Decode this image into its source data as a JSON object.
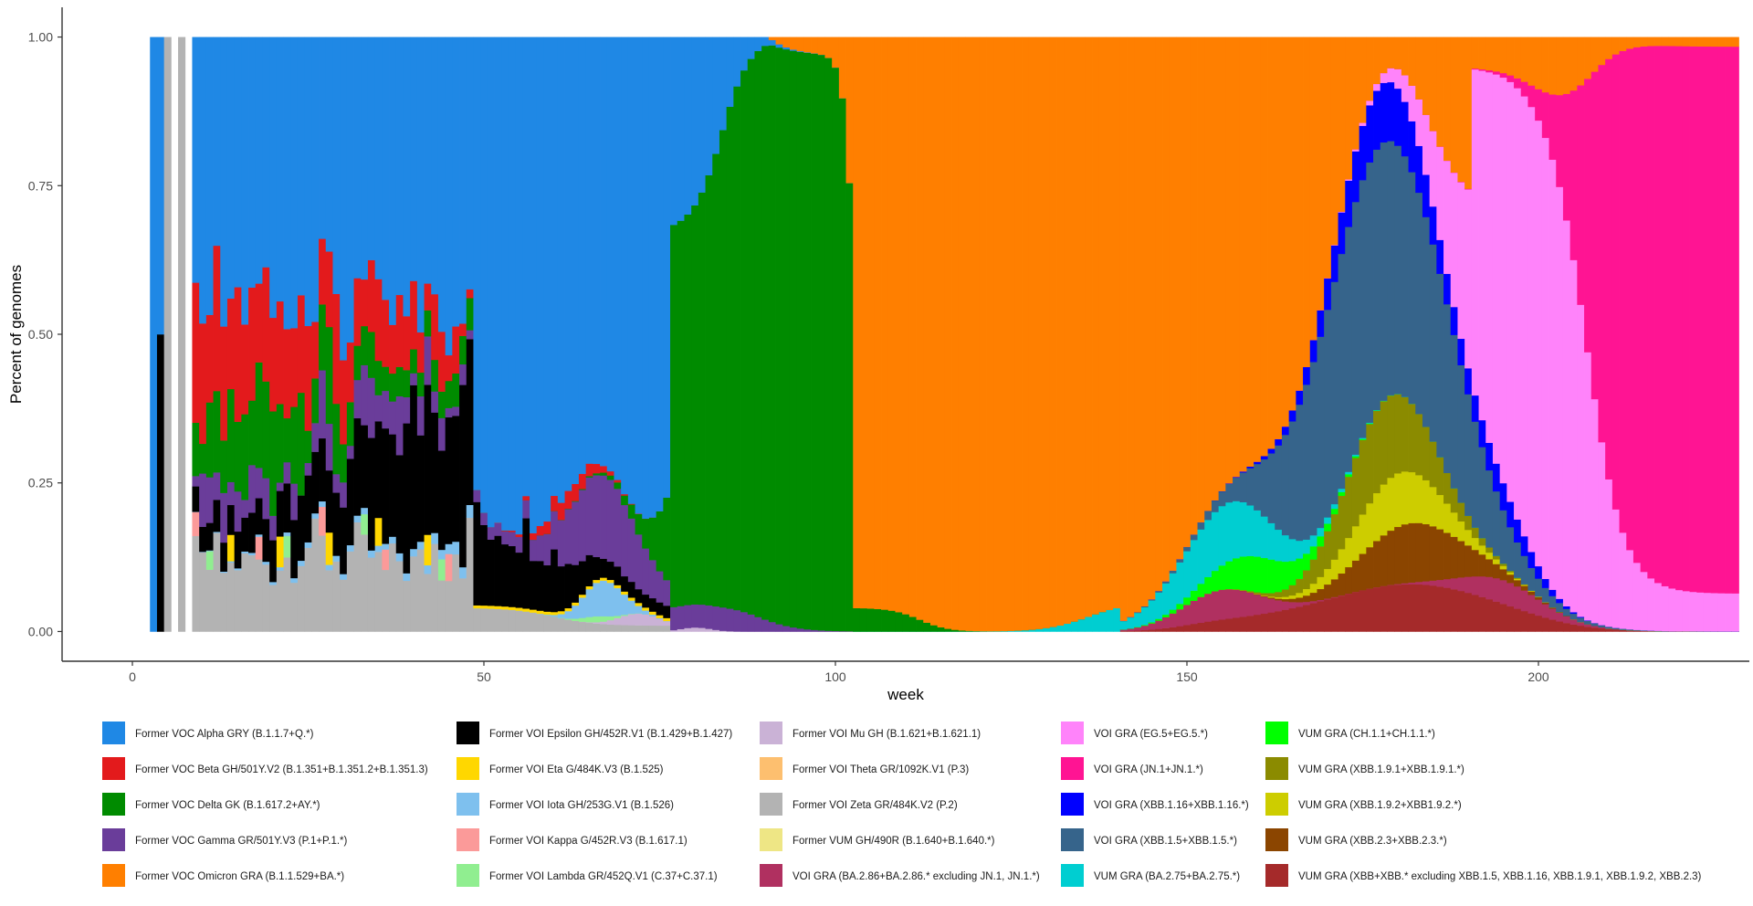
{
  "chart_data": {
    "type": "area",
    "stacked": true,
    "normalized": true,
    "xlabel": "week",
    "ylabel": "Percent of genomes",
    "xlim": [
      -10,
      230
    ],
    "ylim": [
      -0.05,
      1.05
    ],
    "x_ticks": [
      0,
      50,
      100,
      150,
      200
    ],
    "y_ticks": [
      0.0,
      0.25,
      0.5,
      0.75,
      1.0
    ],
    "y_tick_labels": [
      "0.00",
      "0.25",
      "0.50",
      "0.75",
      "1.00"
    ],
    "x_start_week": 3,
    "x_end_week": 228,
    "grid": false,
    "legend_position": "bottom",
    "series": [
      {
        "key": "alpha",
        "name": "Former VOC Alpha GRY (B.1.1.7+Q.*)",
        "color": "#1f88e5"
      },
      {
        "key": "beta",
        "name": "Former VOC Beta GH/501Y.V2 (B.1.351+B.1.351.2+B.1.351.3)",
        "color": "#e31a1c"
      },
      {
        "key": "delta",
        "name": "Former VOC Delta GK (B.1.617.2+AY.*)",
        "color": "#008b00"
      },
      {
        "key": "gamma",
        "name": "Former VOC Gamma GR/501Y.V3 (P.1+P.1.*)",
        "color": "#6a3d9a"
      },
      {
        "key": "omicron",
        "name": "Former VOC Omicron GRA (B.1.1.529+BA.*)",
        "color": "#ff7f00"
      },
      {
        "key": "epsilon",
        "name": "Former VOI Epsilon GH/452R.V1 (B.1.429+B.1.427)",
        "color": "#000000"
      },
      {
        "key": "eta",
        "name": "Former VOI Eta G/484K.V3 (B.1.525)",
        "color": "#ffd700"
      },
      {
        "key": "iota",
        "name": "Former VOI Iota GH/253G.V1 (B.1.526)",
        "color": "#7ec0ee"
      },
      {
        "key": "kappa",
        "name": "Former VOI Kappa G/452R.V3 (B.1.617.1)",
        "color": "#fb9a99"
      },
      {
        "key": "lambda",
        "name": "Former VOI Lambda GR/452Q.V1 (C.37+C.37.1)",
        "color": "#90ee90"
      },
      {
        "key": "mu",
        "name": "Former VOI Mu GH (B.1.621+B.1.621.1)",
        "color": "#cab2d6"
      },
      {
        "key": "theta",
        "name": "Former VOI Theta GR/1092K.V1 (P.3)",
        "color": "#fdbf6f"
      },
      {
        "key": "zeta",
        "name": "Former VOI Zeta GR/484K.V2 (P.2)",
        "color": "#b3b3b3"
      },
      {
        "key": "vumgh",
        "name": "Former VUM GH/490R (B.1.640+B.1.640.*)",
        "color": "#eee685"
      },
      {
        "key": "ba286",
        "name": "VOI GRA (BA.2.86+BA.2.86.* excluding JN.1, JN.1.*)",
        "color": "#b03060"
      },
      {
        "key": "eg5",
        "name": "VOI GRA (EG.5+EG.5.*)",
        "color": "#ff83fa"
      },
      {
        "key": "jn1",
        "name": "VOI GRA (JN.1+JN.1.*)",
        "color": "#ff1493"
      },
      {
        "key": "xbb116",
        "name": "VOI GRA (XBB.1.16+XBB.1.16.*)",
        "color": "#0000ff"
      },
      {
        "key": "xbb15",
        "name": "VOI GRA (XBB.1.5+XBB.1.5.*)",
        "color": "#36648b"
      },
      {
        "key": "ba275",
        "name": "VUM GRA (BA.2.75+BA.2.75.*)",
        "color": "#00ced1"
      },
      {
        "key": "ch11",
        "name": "VUM GRA (CH.1.1+CH.1.1.*)",
        "color": "#00ff00"
      },
      {
        "key": "xbb191",
        "name": "VUM GRA (XBB.1.9.1+XBB.1.9.1.*)",
        "color": "#8b8b00"
      },
      {
        "key": "xbb192",
        "name": "VUM GRA (XBB.1.9.2+XBB1.9.2.*)",
        "color": "#cdcd00"
      },
      {
        "key": "xbb23",
        "name": "VUM GRA (XBB.2.3+XBB.2.3.*)",
        "color": "#8b4500"
      },
      {
        "key": "xbb",
        "name": "VUM GRA (XBB+XBB.* excluding XBB.1.5, XBB.1.16, XBB.1.9.1, XBB.1.9.2, XBB.2.3)",
        "color": "#a52a2a"
      }
    ],
    "stack_order_bottom_to_top": [
      "xbb",
      "ba286",
      "xbb23",
      "xbb192",
      "xbb191",
      "ch11",
      "ba275",
      "zeta",
      "mu",
      "vumgh",
      "lambda",
      "kappa",
      "iota",
      "theta",
      "eta",
      "epsilon",
      "gamma",
      "xbb15",
      "xbb116",
      "eg5",
      "jn1",
      "delta",
      "beta",
      "alpha",
      "omicron"
    ],
    "timeline_summary": [
      {
        "period_weeks": [
          3,
          7
        ],
        "note": "early weeks, sparse data, mostly Alpha"
      },
      {
        "period_weeks": [
          8,
          48
        ],
        "note": "mixed Beta, Delta, Gamma, Zeta, Epsilon with Alpha"
      },
      {
        "period_weeks": [
          49,
          76
        ],
        "note": "Alpha dominant, Epsilon/Zeta/Iota/Gamma minor"
      },
      {
        "period_weeks": [
          77,
          102
        ],
        "note": "Delta rises to dominance"
      },
      {
        "period_weeks": [
          103,
          140
        ],
        "note": "Omicron dominant"
      },
      {
        "period_weeks": [
          141,
          200
        ],
        "note": "XBB sublineages (XBB.1.5, XBB.1.16, XBB.1.9.x, XBB.2.3) and EG.5 rise"
      },
      {
        "period_weeks": [
          200,
          228
        ],
        "note": "JN.1 dominant"
      }
    ]
  }
}
